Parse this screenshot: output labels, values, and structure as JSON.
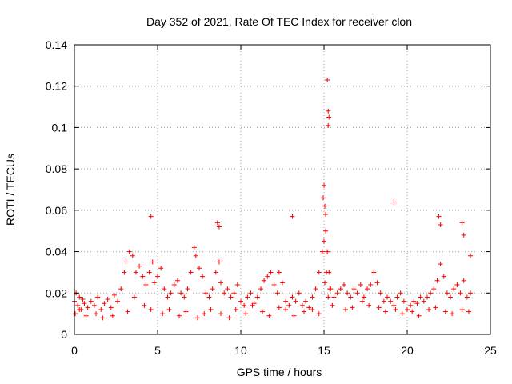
{
  "chart_data": {
    "type": "scatter",
    "title": "Day 352 of 2021, Rate Of TEC Index for receiver clon",
    "xlabel": "GPS time / hours",
    "ylabel": "ROTI / TECUs",
    "xlim": [
      0,
      25
    ],
    "ylim": [
      0,
      0.14
    ],
    "x_ticks": [
      "0",
      "5",
      "10",
      "15",
      "20",
      "25"
    ],
    "y_ticks": [
      "0",
      "0.02",
      "0.04",
      "0.06",
      "0.08",
      "0.1",
      "0.12",
      "0.14"
    ],
    "grid": true,
    "marker": "+",
    "color": "#ff0000",
    "series": [
      {
        "x": [
          0.0,
          0.1,
          0.2,
          0.3,
          0.4,
          0.5,
          0.6,
          0.8,
          1.0,
          1.2,
          1.4,
          1.6,
          1.8,
          2.0,
          2.2,
          2.4,
          2.6,
          2.8,
          3.0,
          3.1,
          3.3,
          3.5,
          3.7,
          3.9,
          4.1,
          4.3,
          4.5,
          4.7,
          4.8,
          5.0,
          5.2,
          5.4,
          5.6,
          5.8,
          6.0,
          6.2,
          6.4,
          6.6,
          6.8,
          7.0,
          7.2,
          7.3,
          7.5,
          7.7,
          7.9,
          8.1,
          8.3,
          8.5,
          8.7,
          8.8,
          9.0,
          9.2,
          9.4,
          9.6,
          9.8,
          10.0,
          10.2,
          10.4,
          10.6,
          10.8,
          11.0,
          11.2,
          11.4,
          11.6,
          11.8,
          12.0,
          12.2,
          12.3,
          12.5,
          12.7,
          12.9,
          13.1,
          13.3,
          13.5,
          13.7,
          13.9,
          14.1,
          14.3,
          14.5,
          14.7,
          14.9,
          15.0,
          15.1,
          15.2,
          15.3,
          15.4,
          15.6,
          15.8,
          16.0,
          16.2,
          16.4,
          16.6,
          16.8,
          17.0,
          17.2,
          17.4,
          17.6,
          17.8,
          18.0,
          18.2,
          18.4,
          18.6,
          18.8,
          19.0,
          19.2,
          19.4,
          19.6,
          19.8,
          20.0,
          20.2,
          20.4,
          20.6,
          20.8,
          21.0,
          21.2,
          21.4,
          21.6,
          21.8,
          22.0,
          22.2,
          22.4,
          22.6,
          22.8,
          23.0,
          23.2,
          23.4,
          23.6,
          23.8,
          0.05,
          0.3,
          0.7,
          1.3,
          1.7,
          2.3,
          3.2,
          3.6,
          4.2,
          4.6,
          5.3,
          5.7,
          6.3,
          6.7,
          7.4,
          7.8,
          8.2,
          8.8,
          9.3,
          9.7,
          10.3,
          10.7,
          11.3,
          11.7,
          12.3,
          12.7,
          13.2,
          13.8,
          14.3,
          14.7,
          15.05,
          15.15,
          15.25,
          15.35,
          15.5,
          16.3,
          16.7,
          17.3,
          17.7,
          18.3,
          18.7,
          19.3,
          19.7,
          20.3,
          20.7,
          21.3,
          21.7,
          22.3,
          22.7,
          23.3,
          23.7,
          4.6,
          8.6,
          8.7,
          13.1,
          15.2,
          15.25,
          15.3,
          15.25,
          15.0,
          14.95,
          15.05,
          15.1,
          19.2,
          21.9,
          22.0,
          23.3,
          23.4,
          23.8
        ],
        "y": [
          0.016,
          0.02,
          0.014,
          0.018,
          0.012,
          0.017,
          0.015,
          0.013,
          0.016,
          0.014,
          0.018,
          0.012,
          0.015,
          0.017,
          0.013,
          0.019,
          0.016,
          0.022,
          0.03,
          0.035,
          0.04,
          0.038,
          0.03,
          0.033,
          0.028,
          0.024,
          0.03,
          0.035,
          0.025,
          0.028,
          0.032,
          0.022,
          0.018,
          0.02,
          0.024,
          0.026,
          0.02,
          0.018,
          0.022,
          0.03,
          0.042,
          0.038,
          0.032,
          0.028,
          0.02,
          0.018,
          0.022,
          0.03,
          0.035,
          0.025,
          0.02,
          0.022,
          0.018,
          0.02,
          0.024,
          0.016,
          0.014,
          0.018,
          0.02,
          0.015,
          0.018,
          0.022,
          0.026,
          0.028,
          0.03,
          0.024,
          0.02,
          0.03,
          0.025,
          0.016,
          0.014,
          0.018,
          0.016,
          0.02,
          0.014,
          0.016,
          0.013,
          0.018,
          0.022,
          0.03,
          0.04,
          0.045,
          0.05,
          0.04,
          0.03,
          0.022,
          0.018,
          0.02,
          0.022,
          0.024,
          0.02,
          0.018,
          0.022,
          0.02,
          0.024,
          0.018,
          0.022,
          0.024,
          0.03,
          0.025,
          0.02,
          0.016,
          0.018,
          0.016,
          0.014,
          0.018,
          0.02,
          0.016,
          0.012,
          0.014,
          0.016,
          0.015,
          0.018,
          0.016,
          0.018,
          0.02,
          0.022,
          0.026,
          0.034,
          0.028,
          0.02,
          0.018,
          0.022,
          0.024,
          0.02,
          0.026,
          0.018,
          0.02,
          0.01,
          0.012,
          0.009,
          0.01,
          0.008,
          0.009,
          0.011,
          0.018,
          0.014,
          0.012,
          0.01,
          0.012,
          0.009,
          0.011,
          0.008,
          0.01,
          0.012,
          0.01,
          0.008,
          0.012,
          0.01,
          0.014,
          0.011,
          0.009,
          0.013,
          0.012,
          0.009,
          0.011,
          0.012,
          0.01,
          0.025,
          0.03,
          0.018,
          0.022,
          0.014,
          0.012,
          0.013,
          0.016,
          0.014,
          0.013,
          0.011,
          0.012,
          0.01,
          0.011,
          0.009,
          0.012,
          0.013,
          0.011,
          0.01,
          0.012,
          0.011,
          0.057,
          0.054,
          0.052,
          0.057,
          0.123,
          0.108,
          0.105,
          0.101,
          0.072,
          0.066,
          0.062,
          0.058,
          0.064,
          0.057,
          0.053,
          0.054,
          0.048,
          0.038
        ]
      }
    ]
  }
}
